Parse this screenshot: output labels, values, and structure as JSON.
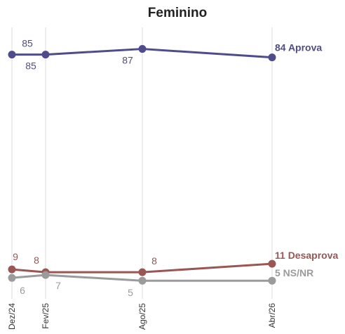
{
  "chart_data": {
    "type": "line",
    "title": "Feminino",
    "categories": [
      "Dez/24",
      "Fev/25",
      "Ago/25",
      "Abr/26"
    ],
    "ylim": [
      0,
      100
    ],
    "grid": "vertical",
    "legend": "inline-end-labels",
    "series": [
      {
        "name": "Aprova",
        "values": [
          85,
          85,
          87,
          84
        ],
        "color": "#4f4c8c",
        "point_labels": [
          "85",
          "85",
          "87",
          "84"
        ],
        "end_label": "84 Aprova"
      },
      {
        "name": "Desaprova",
        "values": [
          9,
          8,
          8,
          11
        ],
        "color": "#9a5653",
        "point_labels": [
          "9",
          "8",
          "8",
          "11"
        ],
        "end_label": "11 Desaprova"
      },
      {
        "name": "NS/NR",
        "values": [
          6,
          7,
          5,
          5
        ],
        "color": "#9b9b9b",
        "point_labels": [
          "6",
          "7",
          "5",
          "5"
        ],
        "end_label": "5 NS/NR"
      }
    ]
  }
}
